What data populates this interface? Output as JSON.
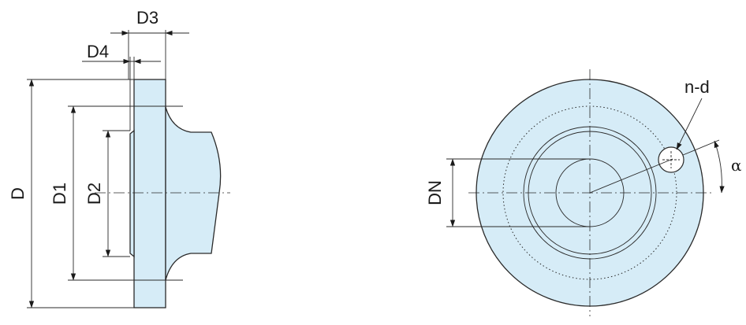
{
  "colors": {
    "part_fill": "#d6ecf7",
    "line": "#2a2a2a"
  },
  "side_view": {
    "labels": {
      "d": "D",
      "d1": "D1",
      "d2": "D2",
      "d3": "D3",
      "d4": "D4"
    }
  },
  "front_view": {
    "labels": {
      "dn": "DN",
      "n_d": "n-d",
      "alpha": "α"
    }
  }
}
